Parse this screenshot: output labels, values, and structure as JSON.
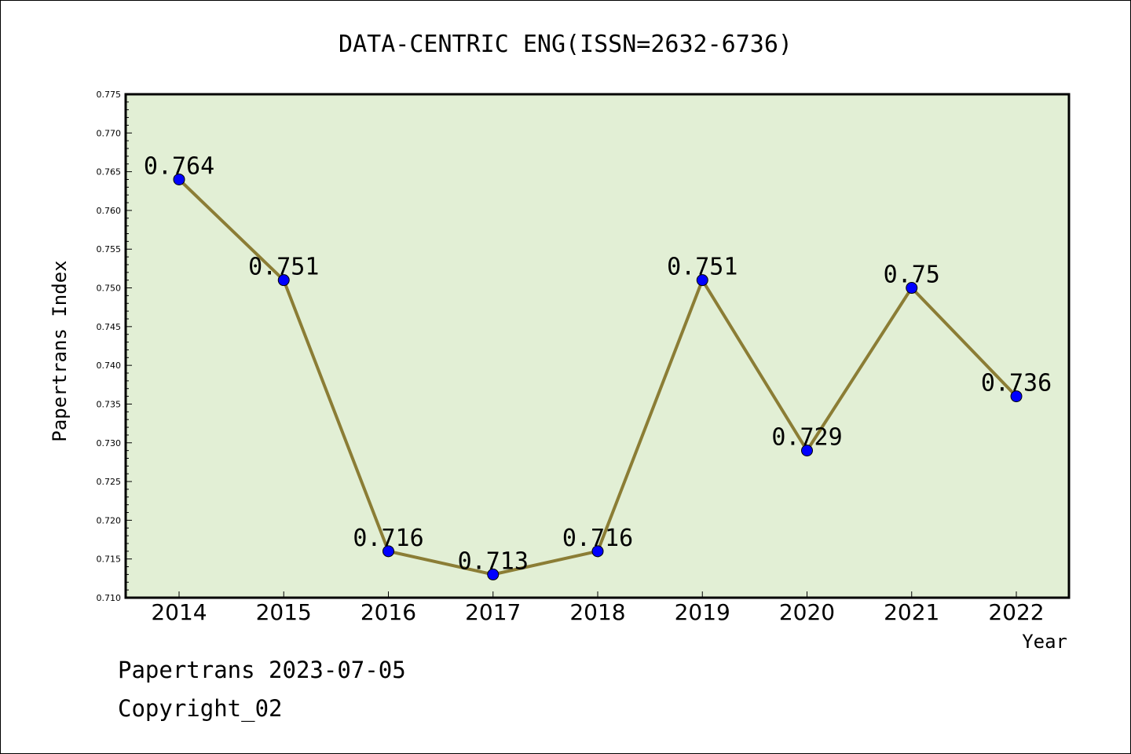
{
  "chart_data": {
    "type": "line",
    "title": "DATA-CENTRIC ENG(ISSN=2632-6736)",
    "xlabel": "Year",
    "ylabel": "Papertrans Index",
    "categories": [
      "2014",
      "2015",
      "2016",
      "2017",
      "2018",
      "2019",
      "2020",
      "2021",
      "2022"
    ],
    "series": [
      {
        "values": [
          0.764,
          0.751,
          0.716,
          0.713,
          0.716,
          0.751,
          0.729,
          0.75,
          0.736
        ],
        "data_labels": [
          "0.764",
          "0.751",
          "0.716",
          "0.713",
          "0.716",
          "0.751",
          "0.729",
          "0.75",
          "0.736"
        ]
      }
    ],
    "ylim": [
      0.71,
      0.775
    ],
    "yticks": [
      "0.710",
      "0.715",
      "0.720",
      "0.725",
      "0.730",
      "0.735",
      "0.740",
      "0.745",
      "0.750",
      "0.755",
      "0.760",
      "0.765",
      "0.770",
      "0.775"
    ],
    "grid": false,
    "colors": {
      "plot_bg": "#e2efd5",
      "line": "#8b7d35",
      "marker": "#0000ff"
    }
  },
  "footer": {
    "line1": "Papertrans 2023-07-05",
    "line2": "Copyright_02"
  }
}
